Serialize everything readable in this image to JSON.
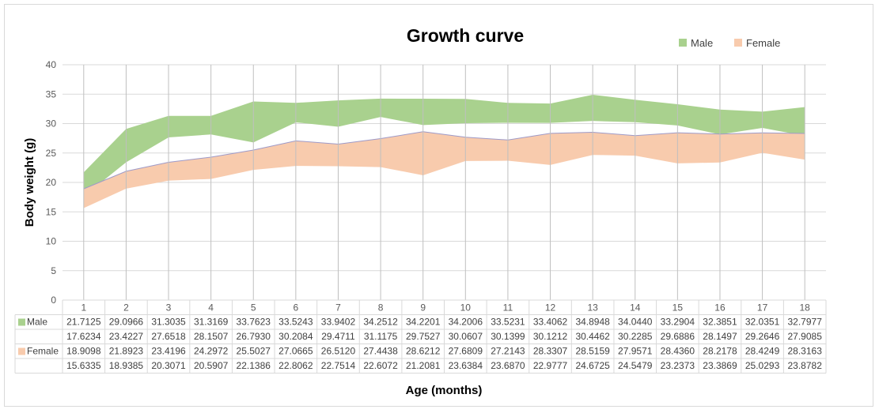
{
  "chart_data": {
    "type": "area",
    "title": "Growth curve",
    "xlabel": "Age (months)",
    "ylabel": "Body weight (g)",
    "ylim": [
      0,
      40
    ],
    "yticks": [
      0,
      5,
      10,
      15,
      20,
      25,
      30,
      35,
      40
    ],
    "categories": [
      "1",
      "2",
      "3",
      "4",
      "5",
      "6",
      "7",
      "8",
      "9",
      "10",
      "11",
      "12",
      "13",
      "14",
      "15",
      "16",
      "17",
      "18"
    ],
    "grid": true,
    "legend_position": "top-right",
    "series": [
      {
        "name": "Male",
        "color": "#a9d18e",
        "upper": [
          "21.7125",
          "29.0966",
          "31.3035",
          "31.3169",
          "33.7623",
          "33.5243",
          "33.9402",
          "34.2512",
          "34.2201",
          "34.2006",
          "33.5231",
          "33.4062",
          "34.8948",
          "34.0440",
          "33.2904",
          "32.3851",
          "32.0351",
          "32.7977"
        ],
        "lower": [
          "17.6234",
          "23.4227",
          "27.6518",
          "28.1507",
          "26.7930",
          "30.2084",
          "29.4711",
          "31.1175",
          "29.7527",
          "30.0607",
          "30.1399",
          "30.1212",
          "30.4462",
          "30.2285",
          "29.6886",
          "28.1497",
          "29.2646",
          "27.9085"
        ]
      },
      {
        "name": "Female",
        "color": "#f8cbad",
        "upper": [
          "18.9098",
          "21.8923",
          "23.4196",
          "24.2972",
          "25.5027",
          "27.0665",
          "26.5120",
          "27.4438",
          "28.6212",
          "27.6809",
          "27.2143",
          "28.3307",
          "28.5159",
          "27.9571",
          "28.4360",
          "28.2178",
          "28.4249",
          "28.3163"
        ],
        "lower": [
          "15.6335",
          "18.9385",
          "20.3071",
          "20.5907",
          "22.1386",
          "22.8062",
          "22.7514",
          "22.6072",
          "21.2081",
          "23.6384",
          "23.6870",
          "22.9777",
          "24.6725",
          "24.5479",
          "23.2373",
          "23.3869",
          "25.0293",
          "23.8782"
        ]
      }
    ]
  }
}
